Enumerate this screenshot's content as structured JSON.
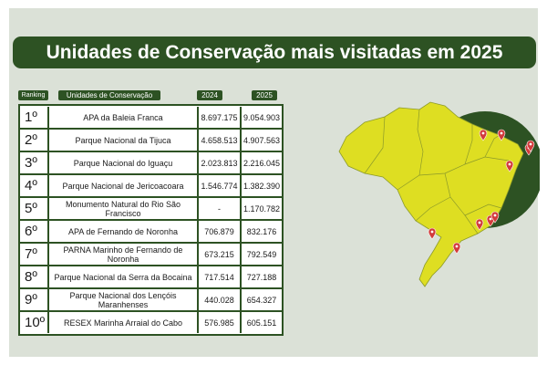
{
  "title": "Unidades de Conservação mais visitadas em 2025",
  "headers": {
    "ranking": "Ranking",
    "unidade": "Unidades de Conservação",
    "y2024": "2024",
    "y2025": "2025"
  },
  "rows": [
    {
      "rank": "1º",
      "name": "APA da Baleia Franca",
      "v2024": "8.697.175",
      "v2025": "9.054.903"
    },
    {
      "rank": "2º",
      "name": "Parque Nacional da Tijuca",
      "v2024": "4.658.513",
      "v2025": "4.907.563"
    },
    {
      "rank": "3º",
      "name": "Parque Nacional do Iguaçu",
      "v2024": "2.023.813",
      "v2025": "2.216.045"
    },
    {
      "rank": "4º",
      "name": "Parque Nacional de Jericoacoara",
      "v2024": "1.546.774",
      "v2025": "1.382.390"
    },
    {
      "rank": "5º",
      "name": "Monumento Natural do Rio São Francisco",
      "v2024": "-",
      "v2025": "1.170.782"
    },
    {
      "rank": "6º",
      "name": "APA de Fernando de Noronha",
      "v2024": "706.879",
      "v2025": "832.176"
    },
    {
      "rank": "7º",
      "name": "PARNA Marinho de Fernando de Noronha",
      "v2024": "673.215",
      "v2025": "792.549"
    },
    {
      "rank": "8º",
      "name": "Parque Nacional da Serra da Bocaina",
      "v2024": "717.514",
      "v2025": "727.188"
    },
    {
      "rank": "9º",
      "name": "Parque Nacional dos Lençóis Maranhenses",
      "v2024": "440.028",
      "v2025": "654.327"
    },
    {
      "rank": "10º",
      "name": "RESEX Marinha Arraial do Cabo",
      "v2024": "576.985",
      "v2025": "605.151"
    }
  ],
  "map": {
    "region": "brazil-map",
    "pin_count": 10,
    "colors": {
      "map_fill": "#dede22",
      "map_borders": "#8c9a2a",
      "circle": "#2d5223",
      "pins": "#d23b3b"
    }
  },
  "colors": {
    "background": "#dbe1d7",
    "accent": "#2d5223",
    "title_text": "#ffffff"
  }
}
